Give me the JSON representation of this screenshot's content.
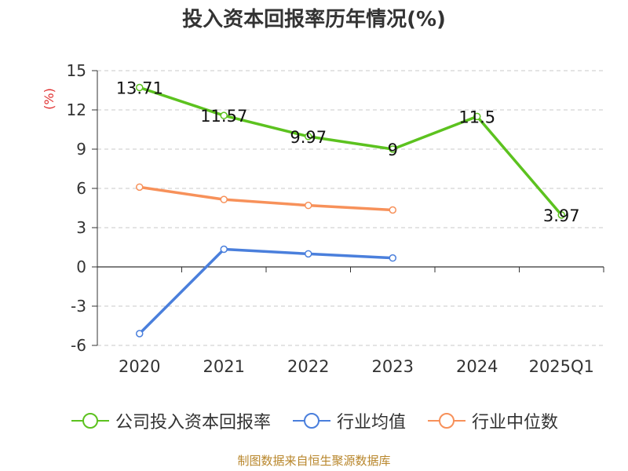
{
  "title": "投入资本回报率历年情况(%)",
  "source": "制图数据来自恒生聚源数据库",
  "chart_data": {
    "type": "line",
    "title": "投入资本回报率历年情况(%)",
    "ylabel": "(%)",
    "xlabel": "",
    "categories": [
      "2020",
      "2021",
      "2022",
      "2023",
      "2024",
      "2025Q1"
    ],
    "ylim": [
      -6,
      15
    ],
    "yticks": [
      15,
      12,
      9,
      6,
      3,
      0,
      -3,
      -6
    ],
    "grid": true,
    "legend_position": "bottom",
    "series": [
      {
        "name": "公司投入资本回报率",
        "color": "#5cc21f",
        "values": [
          13.71,
          11.57,
          9.97,
          9,
          11.5,
          3.97
        ],
        "labels": [
          "13.71",
          "11.57",
          "9.97",
          "9",
          "11.5",
          "3.97"
        ]
      },
      {
        "name": "行业均值",
        "color": "#4a7fdc",
        "values": [
          -5.1,
          1.35,
          1.0,
          0.68,
          null,
          null
        ]
      },
      {
        "name": "行业中位数",
        "color": "#f7915a",
        "values": [
          6.1,
          5.15,
          4.7,
          4.35,
          null,
          null
        ]
      }
    ]
  }
}
